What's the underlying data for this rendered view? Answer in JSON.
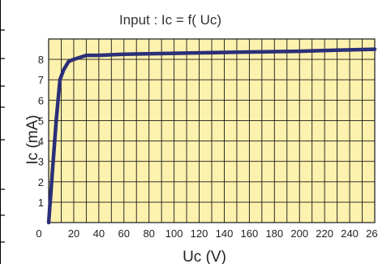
{
  "chart_data": {
    "type": "line",
    "title": "Input : Ic = f( Uc)",
    "xlabel": "Uc (V)",
    "ylabel": "Ic (mA)",
    "xlim": [
      0,
      260
    ],
    "ylim": [
      0,
      9
    ],
    "x_ticks": [
      0,
      20,
      40,
      60,
      80,
      100,
      120,
      140,
      160,
      180,
      200,
      220,
      240,
      260
    ],
    "y_ticks": [
      1,
      2,
      3,
      4,
      5,
      6,
      7,
      8
    ],
    "x_tick_labels": [
      "0",
      "20",
      "40",
      "60",
      "80",
      "100",
      "120",
      "140",
      "160",
      "180",
      "200",
      "220",
      "240",
      "260"
    ],
    "y_tick_labels": [
      "1",
      "2",
      "3",
      "4",
      "5",
      "6",
      "7",
      "8"
    ],
    "grid": true,
    "series": [
      {
        "x": [
          0,
          3,
          6,
          9,
          12,
          16,
          20,
          25,
          30,
          40,
          60,
          100,
          150,
          200,
          230,
          260
        ],
        "y": [
          0,
          2.5,
          5,
          7,
          7.5,
          7.9,
          8.0,
          8.1,
          8.2,
          8.2,
          8.25,
          8.3,
          8.35,
          8.4,
          8.45,
          8.5
        ]
      }
    ],
    "colors": {
      "plot_bg": "#fdf1ae",
      "grid": "#1a1a1a",
      "line": "#2b2f78"
    }
  }
}
